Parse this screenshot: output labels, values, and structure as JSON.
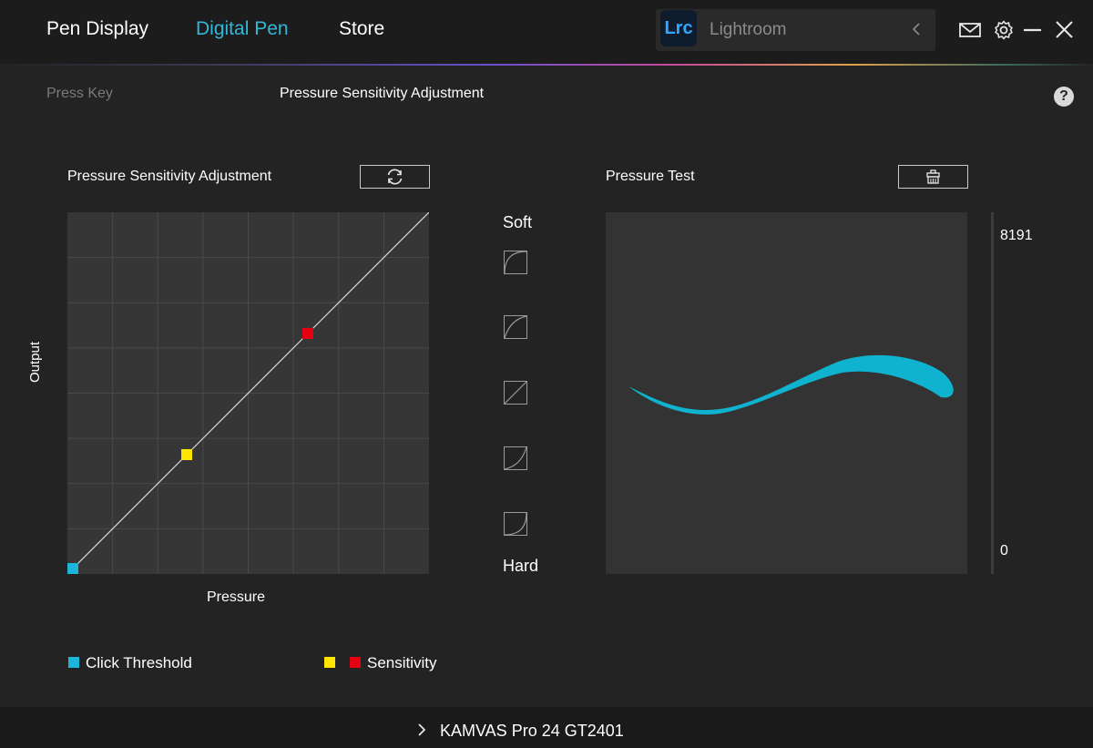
{
  "nav": {
    "tabs": [
      {
        "label": "Pen Display"
      },
      {
        "label": "Digital Pen"
      },
      {
        "label": "Store"
      }
    ],
    "active_tab": "Digital Pen",
    "accent_color": "#34b6d6"
  },
  "app_selector": {
    "logo_text": "Lrc",
    "app_name": "Lightroom",
    "icon": "chevron-left-icon"
  },
  "window_controls": [
    "mail-icon",
    "gear-icon",
    "minimize-icon",
    "close-icon"
  ],
  "subtabs": [
    {
      "label": "Press Key"
    },
    {
      "label": "Pressure Sensitivity Adjustment"
    }
  ],
  "help_glyph": "?",
  "pressure_panel": {
    "title": "Pressure Sensitivity Adjustment",
    "reset_icon": "refresh-icon",
    "x_label": "Pressure",
    "y_label": "Output",
    "points": [
      {
        "name": "Click Threshold",
        "color": "#1fb5d6",
        "pressure": 0.015,
        "output": 0.015
      },
      {
        "name": "Sensitivity low",
        "color": "#ffe600",
        "pressure": 0.33,
        "output": 0.33
      },
      {
        "name": "Sensitivity high",
        "color": "#e50012",
        "pressure": 0.665,
        "output": 0.665
      }
    ]
  },
  "presets": {
    "soft_label": "Soft",
    "hard_label": "Hard",
    "items": [
      "curve-soft-icon",
      "curve-medium-soft-icon",
      "curve-linear-icon",
      "curve-medium-hard-icon",
      "curve-hard-icon"
    ]
  },
  "pressure_test": {
    "title": "Pressure Test",
    "clear_icon": "eraser-icon",
    "stroke_color": "#0fb2cf",
    "meter_max": "8191",
    "meter_min": "0"
  },
  "legend": {
    "click_threshold": "Click Threshold",
    "sensitivity": "Sensitivity"
  },
  "device": {
    "name": "KAMVAS Pro 24 GT2401",
    "icon": "chevron-right-icon"
  }
}
